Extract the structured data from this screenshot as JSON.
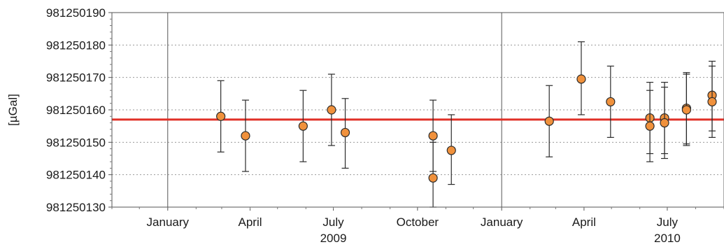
{
  "chart_data": {
    "type": "scatter",
    "title": "",
    "xlabel": "",
    "ylabel": "[µGal]",
    "ylim": [
      981250130,
      981250190
    ],
    "xlim": [
      "2008-11-01",
      "2010-09-01"
    ],
    "y_ticks": [
      981250130,
      981250140,
      981250150,
      981250160,
      981250170,
      981250180,
      981250190
    ],
    "x_tick_labels": [
      {
        "date": "2009-01-01",
        "label": "January"
      },
      {
        "date": "2009-04-01",
        "label": "April"
      },
      {
        "date": "2009-07-01",
        "label": "July"
      },
      {
        "date": "2009-10-01",
        "label": "October"
      },
      {
        "date": "2010-01-01",
        "label": "January"
      },
      {
        "date": "2010-04-01",
        "label": "April"
      },
      {
        "date": "2010-07-01",
        "label": "July"
      }
    ],
    "year_labels": [
      {
        "date": "2009-07-01",
        "label": "2009"
      },
      {
        "date": "2010-07-01",
        "label": "2010"
      }
    ],
    "year_boundaries": [
      "2009-01-01",
      "2010-01-01"
    ],
    "grid": "horizontal dotted",
    "reference_line": {
      "value": 981250157,
      "color": "#e03027"
    },
    "points": [
      {
        "date": "2009-02-28",
        "value": 981250158,
        "err_low": 981250147,
        "err_high": 981250169
      },
      {
        "date": "2009-03-27",
        "value": 981250152,
        "err_low": 981250141,
        "err_high": 981250163
      },
      {
        "date": "2009-05-29",
        "value": 981250155,
        "err_low": 981250144,
        "err_high": 981250166
      },
      {
        "date": "2009-06-29",
        "value": 981250160,
        "err_low": 981250149,
        "err_high": 981250171
      },
      {
        "date": "2009-07-14",
        "value": 981250153,
        "err_low": 981250142,
        "err_high": 981250163.5
      },
      {
        "date": "2009-10-18",
        "value": 981250152,
        "err_low": 981250141,
        "err_high": 981250163
      },
      {
        "date": "2009-10-18",
        "value": 981250139,
        "err_low": 981250130,
        "err_high": 981250150
      },
      {
        "date": "2009-11-07",
        "value": 981250147.5,
        "err_low": 981250137,
        "err_high": 981250158.5
      },
      {
        "date": "2010-02-22",
        "value": 981250156.5,
        "err_low": 981250145.5,
        "err_high": 981250167.5
      },
      {
        "date": "2010-03-29",
        "value": 981250169.5,
        "err_low": 981250158.5,
        "err_high": 981250181
      },
      {
        "date": "2010-04-30",
        "value": 981250162.5,
        "err_low": 981250151.5,
        "err_high": 981250173.5
      },
      {
        "date": "2010-06-12",
        "value": 981250157.5,
        "err_low": 981250146.5,
        "err_high": 981250168.5
      },
      {
        "date": "2010-06-12",
        "value": 981250155,
        "err_low": 981250144,
        "err_high": 981250166
      },
      {
        "date": "2010-06-28",
        "value": 981250157.5,
        "err_low": 981250146.5,
        "err_high": 981250168.5
      },
      {
        "date": "2010-06-28",
        "value": 981250156,
        "err_low": 981250145,
        "err_high": 981250167
      },
      {
        "date": "2010-07-22",
        "value": 981250160.5,
        "err_low": 981250149.5,
        "err_high": 981250171.5
      },
      {
        "date": "2010-07-22",
        "value": 981250160,
        "err_low": 981250149,
        "err_high": 981250171
      },
      {
        "date": "2010-08-19",
        "value": 981250164.5,
        "err_low": 981250153.5,
        "err_high": 981250175
      },
      {
        "date": "2010-08-19",
        "value": 981250162.5,
        "err_low": 981250151.5,
        "err_high": 981250173.5
      }
    ],
    "colors": {
      "marker_fill": "#f0913c",
      "marker_stroke": "#2b2b2b",
      "reference": "#e03027",
      "grid": "#9a9a9a"
    }
  }
}
